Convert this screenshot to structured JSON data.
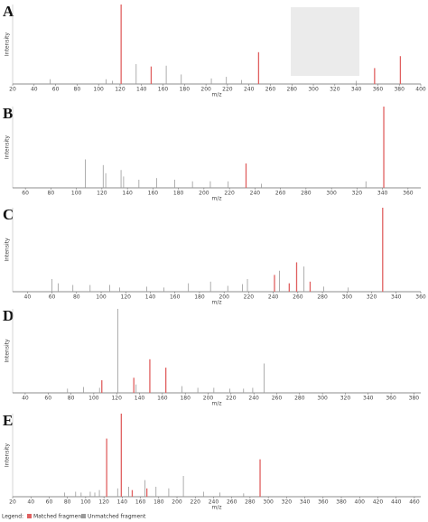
{
  "legend": {
    "title": "Legend:",
    "series": [
      {
        "name": "Matched fragment",
        "color": "#e06060"
      },
      {
        "name": "Unmatched fragment",
        "color": "#9a9a9a"
      }
    ]
  },
  "chart_data": [
    {
      "type": "stem",
      "label": "A",
      "ylabel": "Intensity",
      "xlabel": "m/z",
      "xlim": [
        20,
        400
      ],
      "ylim": [
        0,
        100
      ],
      "xticks": [
        20,
        40,
        60,
        80,
        100,
        120,
        140,
        160,
        180,
        200,
        220,
        240,
        260,
        280,
        300,
        320,
        340,
        360,
        380,
        400
      ],
      "matched": {
        "x": [
          121,
          149,
          249,
          357,
          381
        ],
        "values": [
          100,
          22,
          40,
          20,
          35
        ]
      },
      "unmatched": {
        "x": [
          55,
          107,
          113,
          135,
          163,
          177,
          205,
          219,
          233,
          340
        ],
        "values": [
          6,
          6,
          4,
          25,
          23,
          12,
          7,
          9,
          5,
          4
        ]
      }
    },
    {
      "type": "stem",
      "label": "B",
      "ylabel": "Intensity",
      "xlabel": "m/z",
      "xlim": [
        50,
        370
      ],
      "ylim": [
        0,
        100
      ],
      "xticks": [
        60,
        80,
        100,
        120,
        140,
        160,
        180,
        200,
        220,
        240,
        260,
        280,
        300,
        320,
        340,
        360
      ],
      "matched": {
        "x": [
          233,
          341
        ],
        "values": [
          30,
          100
        ]
      },
      "unmatched": {
        "x": [
          107,
          121,
          123,
          135,
          137,
          149,
          163,
          177,
          191,
          205,
          219,
          245,
          327
        ],
        "values": [
          35,
          28,
          18,
          22,
          14,
          10,
          12,
          10,
          8,
          8,
          8,
          5,
          8
        ]
      }
    },
    {
      "type": "stem",
      "label": "C",
      "ylabel": "Intensity",
      "xlabel": "m/z",
      "xlim": [
        28,
        360
      ],
      "ylim": [
        0,
        100
      ],
      "xticks": [
        40,
        60,
        80,
        100,
        120,
        140,
        160,
        180,
        200,
        220,
        240,
        260,
        280,
        300,
        320,
        340,
        360
      ],
      "matched": {
        "x": [
          241,
          253,
          259,
          270,
          329
        ],
        "values": [
          20,
          10,
          35,
          12,
          100
        ]
      },
      "unmatched": {
        "x": [
          60,
          65,
          77,
          91,
          107,
          115,
          137,
          151,
          171,
          189,
          203,
          215,
          219,
          245,
          265,
          281,
          301
        ],
        "values": [
          15,
          10,
          8,
          8,
          8,
          5,
          6,
          5,
          10,
          12,
          7,
          9,
          15,
          25,
          30,
          6,
          5
        ]
      }
    },
    {
      "type": "stem",
      "label": "D",
      "ylabel": "Intensity",
      "xlabel": "m/z",
      "xlim": [
        29,
        386
      ],
      "ylim": [
        0,
        100
      ],
      "xticks": [
        40,
        60,
        80,
        100,
        120,
        140,
        160,
        180,
        200,
        220,
        240,
        260,
        280,
        300,
        320,
        340,
        360,
        380
      ],
      "matched": {
        "x": [
          107,
          135,
          149,
          163
        ],
        "values": [
          15,
          18,
          40,
          30
        ]
      },
      "unmatched": {
        "x": [
          77,
          91,
          105,
          121,
          137,
          177,
          191,
          205,
          219,
          231,
          239,
          249
        ],
        "values": [
          5,
          7,
          6,
          100,
          10,
          8,
          6,
          6,
          5,
          5,
          6,
          35
        ]
      }
    },
    {
      "type": "stem",
      "label": "E",
      "ylabel": "Intensity",
      "xlabel": "m/z",
      "xlim": [
        20,
        467
      ],
      "ylim": [
        0,
        100
      ],
      "xticks": [
        20,
        40,
        60,
        80,
        100,
        120,
        140,
        160,
        180,
        200,
        220,
        240,
        260,
        280,
        300,
        320,
        340,
        360,
        380,
        400,
        420,
        440,
        460
      ],
      "matched": {
        "x": [
          123,
          139,
          151,
          167,
          291
        ],
        "values": [
          70,
          100,
          8,
          10,
          45
        ]
      },
      "unmatched": {
        "x": [
          77,
          89,
          95,
          105,
          110,
          115,
          135,
          147,
          165,
          177,
          191,
          207,
          229,
          247,
          273
        ],
        "values": [
          5,
          6,
          5,
          6,
          5,
          8,
          10,
          12,
          20,
          12,
          10,
          25,
          6,
          5,
          4
        ]
      }
    }
  ]
}
